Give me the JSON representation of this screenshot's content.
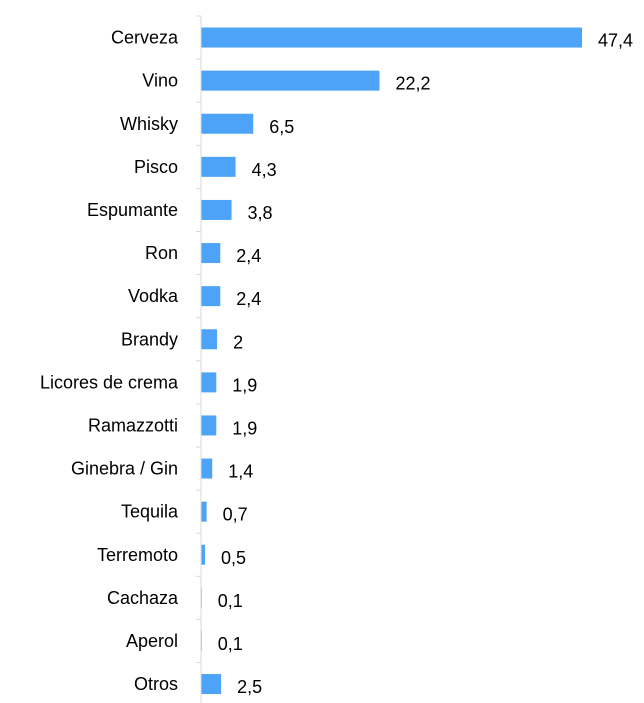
{
  "chart_data": {
    "type": "bar",
    "orientation": "horizontal",
    "title": "",
    "xlabel": "",
    "ylabel": "",
    "categories": [
      "Cerveza",
      "Vino",
      "Whisky",
      "Pisco",
      "Espumante",
      "Ron",
      "Vodka",
      "Brandy",
      "Licores de crema",
      "Ramazzotti",
      "Ginebra / Gin",
      "Tequila",
      "Terremoto",
      "Cachaza",
      "Aperol",
      "Otros"
    ],
    "values": [
      47.4,
      22.2,
      6.5,
      4.3,
      3.8,
      2.4,
      2.4,
      2,
      1.9,
      1.9,
      1.4,
      0.7,
      0.5,
      0.1,
      0.1,
      2.5
    ],
    "value_labels": [
      "47,4",
      "22,2",
      "6,5",
      "4,3",
      "3,8",
      "2,4",
      "2,4",
      "2",
      "1,9",
      "1,9",
      "1,4",
      "0,7",
      "0,5",
      "0,1",
      "0,1",
      "2,5"
    ],
    "xlim": [
      0,
      47.4
    ],
    "grid": false,
    "legend": "none",
    "bar_color": "#4da3f7",
    "axis_color": "#d9d9d9"
  }
}
